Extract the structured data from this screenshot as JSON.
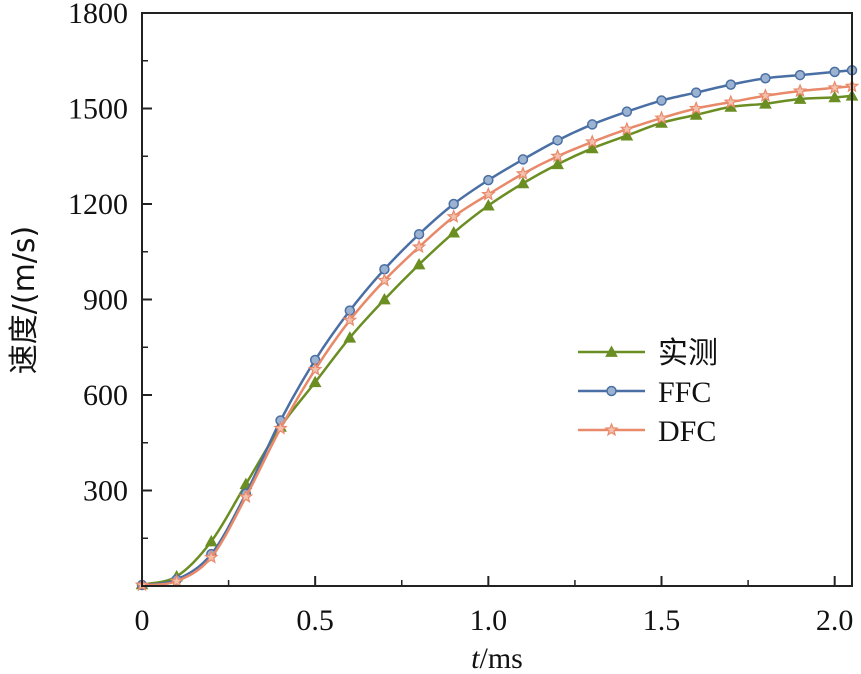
{
  "chart_data": {
    "type": "line",
    "title": "",
    "xlabel": {
      "italic": "t",
      "rest": "/ms"
    },
    "ylabel": "速度/(m/s)",
    "xlim": [
      0,
      2.05
    ],
    "ylim": [
      0,
      1800
    ],
    "xticks": [
      0,
      0.5,
      1.0,
      1.5,
      2.0
    ],
    "xtick_labels": [
      "0",
      "0.5",
      "1.0",
      "1.5",
      "2.0"
    ],
    "yticks": [
      300,
      600,
      900,
      1200,
      1500,
      1800
    ],
    "ytick_labels": [
      "300",
      "600",
      "900",
      "1200",
      "1500",
      "1800"
    ],
    "legend_position": "center-right",
    "grid": false,
    "x": [
      0,
      0.1,
      0.2,
      0.3,
      0.4,
      0.5,
      0.6,
      0.7,
      0.8,
      0.9,
      1.0,
      1.1,
      1.2,
      1.3,
      1.4,
      1.5,
      1.6,
      1.7,
      1.8,
      1.9,
      2.0,
      2.05
    ],
    "series": [
      {
        "name": "实测",
        "color": "#6b8e23",
        "marker": "triangle",
        "values": [
          5,
          30,
          140,
          320,
          500,
          640,
          780,
          900,
          1010,
          1110,
          1195,
          1265,
          1325,
          1375,
          1415,
          1455,
          1480,
          1505,
          1515,
          1530,
          1535,
          1540
        ]
      },
      {
        "name": "FFC",
        "color": "#4a6fa5",
        "marker": "circle",
        "values": [
          3,
          20,
          100,
          290,
          520,
          710,
          865,
          995,
          1105,
          1200,
          1275,
          1340,
          1400,
          1450,
          1490,
          1525,
          1550,
          1575,
          1595,
          1605,
          1615,
          1620
        ]
      },
      {
        "name": "DFC",
        "color": "#e8896a",
        "marker": "star",
        "values": [
          3,
          15,
          90,
          280,
          495,
          680,
          835,
          960,
          1065,
          1160,
          1230,
          1295,
          1350,
          1395,
          1435,
          1470,
          1500,
          1520,
          1540,
          1555,
          1565,
          1570
        ]
      }
    ]
  }
}
